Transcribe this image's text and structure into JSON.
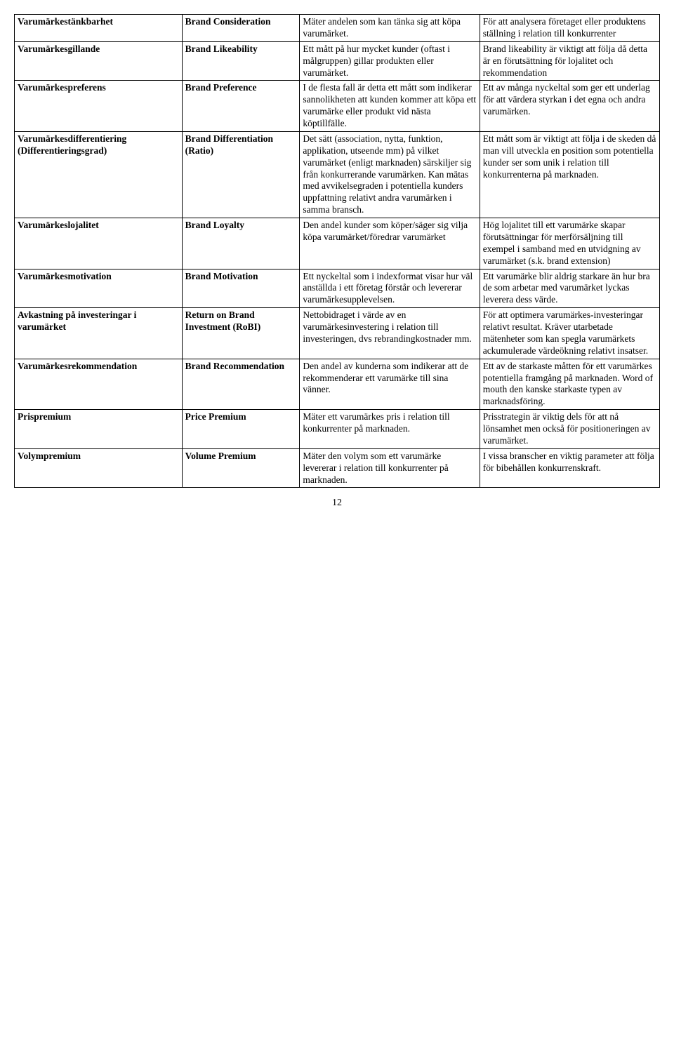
{
  "rows": [
    {
      "c1": "Varumärkestänkbarhet",
      "c2": "Brand Consideration",
      "c3": "Mäter andelen som kan tänka sig att köpa varumärket.",
      "c4": "För att analysera företaget eller produktens ställning i relation till konkurrenter"
    },
    {
      "c1": "Varumärkesgillande",
      "c2": "Brand Likeability",
      "c3": "Ett mått på hur mycket kunder (oftast i målgruppen) gillar produkten eller varumärket.",
      "c4": "Brand likeability är viktigt att följa då detta är en förutsättning för lojalitet och rekommendation"
    },
    {
      "c1": "Varumärkespreferens",
      "c2": "Brand Preference",
      "c3": "I de flesta fall är detta ett mått som indikerar sannolikheten att kunden kommer att köpa ett varumärke eller produkt vid nästa köptillfälle.",
      "c4": "Ett av många nyckeltal som ger ett underlag för att värdera styrkan i det egna och andra varumärken."
    },
    {
      "c1": "Varumärkesdifferentiering (Differentieringsgrad)",
      "c2": "Brand Differentiation (Ratio)",
      "c3": "Det sätt (association, nytta, funktion, applikation, utseende mm) på vilket varumärket (enligt marknaden) särskiljer sig från konkurrerande varumärken. Kan mätas med avvikelsegraden i potentiella kunders uppfattning relativt andra varumärken i samma bransch.",
      "c4": "Ett mått som är viktigt att följa i de skeden då man vill utveckla en position som potentiella kunder ser som unik i relation till konkurrenterna på marknaden."
    },
    {
      "c1": "Varumärkeslojalitet",
      "c2": "Brand Loyalty",
      "c3": "Den andel kunder som köper/säger sig vilja köpa varumärket/föredrar varumärket",
      "c4": "Hög lojalitet till ett varumärke skapar förutsättningar för merförsäljning till exempel i samband med en utvidgning av varumärket (s.k. brand extension)"
    },
    {
      "c1": "Varumärkesmotivation",
      "c2": "Brand Motivation",
      "c3": "Ett nyckeltal som i indexformat visar hur väl anställda i ett företag förstår och levererar varumärkesupplevelsen.",
      "c4": "Ett varumärke blir aldrig starkare än hur bra de som arbetar med varumärket lyckas leverera dess värde."
    },
    {
      "c1": "Avkastning på investeringar i varumärket",
      "c2": "Return on Brand Investment (RoBI)",
      "c3": "Nettobidraget i värde av en varumärkesinvestering i relation till investeringen, dvs rebrandingkostnader mm.",
      "c4": "För att optimera varumärkes-investeringar relativt resultat. Kräver utarbetade mätenheter som kan spegla varumärkets ackumulerade värdeökning relativt insatser."
    },
    {
      "c1": "Varumärkesrekommendation",
      "c2": "Brand Recommendation",
      "c3": "Den andel av kunderna som indikerar att de rekommenderar ett varumärke till sina vänner.",
      "c4": "Ett av de starkaste måtten för ett varumärkes potentiella framgång på marknaden. Word of mouth den kanske starkaste typen av marknadsföring."
    },
    {
      "c1": "Prispremium",
      "c2": "Price Premium",
      "c3": "Mäter ett varumärkes pris i relation till konkurrenter på marknaden.",
      "c4": "Prisstrategin är viktig dels för att nå lönsamhet men också för positioneringen av varumärket."
    },
    {
      "c1": "Volympremium",
      "c2": "Volume Premium",
      "c3": "Mäter den volym som ett varumärke levererar i relation till konkurrenter på marknaden.",
      "c4": "I vissa branscher en viktig parameter att följa för bibehållen konkurrenskraft."
    }
  ],
  "pageNumber": "12"
}
